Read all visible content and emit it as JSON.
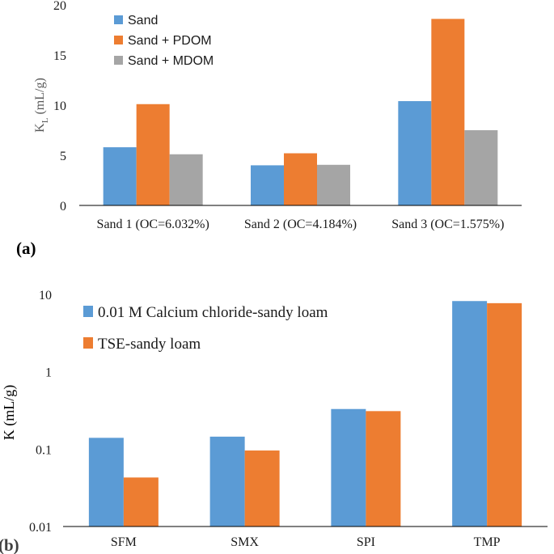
{
  "chart_data": [
    {
      "type": "bar",
      "panel_label": "(a)",
      "ylabel_main": "K",
      "ylabel_sub": "L",
      "ylabel_unit": " (mL/g)",
      "ylim": [
        0,
        20
      ],
      "yticks": [
        0,
        5,
        10,
        15,
        20
      ],
      "yscale": "linear",
      "categories": [
        "Sand 1 (OC=6.032%)",
        "Sand 2 (OC=4.184%)",
        "Sand 3 (OC=1.575%)"
      ],
      "series": [
        {
          "name": "Sand",
          "values": [
            5.8,
            4.0,
            10.4
          ],
          "color": "#5b9bd5"
        },
        {
          "name": "Sand + PDOM",
          "values": [
            10.1,
            5.2,
            18.6
          ],
          "color": "#ed7d31"
        },
        {
          "name": "Sand + MDOM",
          "values": [
            5.1,
            4.05,
            7.5
          ],
          "color": "#a5a5a5"
        }
      ],
      "legend_position": "top-left"
    },
    {
      "type": "bar",
      "panel_label": "(b)",
      "ylabel": "K (mL/g)",
      "yscale": "log",
      "ylim": [
        0.01,
        10
      ],
      "yticks": [
        0.01,
        0.1,
        1,
        10
      ],
      "ytick_labels": [
        "0.01",
        "0.1",
        "1",
        "10"
      ],
      "categories": [
        "SFM",
        "SMX",
        "SPI",
        "TMP"
      ],
      "series": [
        {
          "name": "0.01 M Calcium chloride-sandy loam",
          "values": [
            0.14,
            0.145,
            0.33,
            8.2
          ],
          "color": "#5b9bd5"
        },
        {
          "name": "TSE-sandy loam",
          "values": [
            0.043,
            0.096,
            0.31,
            7.7
          ],
          "color": "#ed7d31"
        }
      ],
      "legend_position": "top-left"
    }
  ]
}
